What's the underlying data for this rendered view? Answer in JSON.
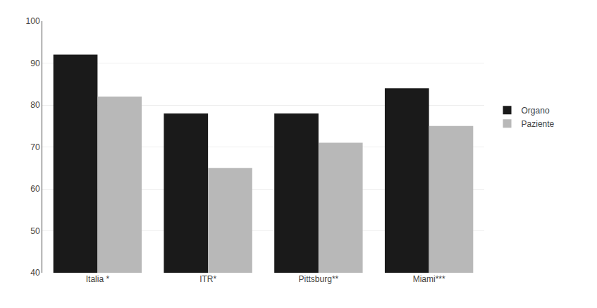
{
  "chart_data": {
    "type": "bar",
    "categories": [
      "Italia *",
      "ITR*",
      "Pittsburg**",
      "Miami***"
    ],
    "series": [
      {
        "name": "Organo",
        "color": "#1a1a1a",
        "values": [
          92,
          78,
          78,
          84
        ]
      },
      {
        "name": "Paziente",
        "color": "#b8b8b8",
        "values": [
          82,
          65,
          71,
          75
        ]
      }
    ],
    "ylim": [
      40,
      100
    ],
    "yticks": [
      40,
      50,
      60,
      70,
      80,
      90,
      100
    ],
    "grid": true,
    "legend": "right"
  }
}
